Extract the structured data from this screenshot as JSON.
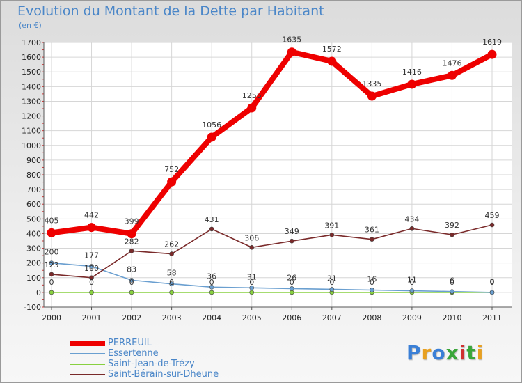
{
  "header": {
    "title": "Evolution du Montant de la Dette par Habitant",
    "unit": "(en €)"
  },
  "brand": {
    "letters": [
      "P",
      "r",
      "o",
      "x",
      "i",
      "t",
      "i"
    ],
    "colors": [
      "#3a7fd6",
      "#e8a020",
      "#3a7fd6",
      "#3aa63a",
      "#d03030",
      "#3aa63a",
      "#e8a020"
    ]
  },
  "chart_data": {
    "type": "line",
    "title": "Evolution du Montant de la Dette par Habitant",
    "ylabel": "(en €)",
    "xlabel": "",
    "x": [
      "2000",
      "2001",
      "2002",
      "2003",
      "2004",
      "2005",
      "2006",
      "2007",
      "2008",
      "2009",
      "2010",
      "2011"
    ],
    "ylim": [
      -100,
      1700
    ],
    "yticks": [
      "-100",
      "0",
      "100",
      "200",
      "300",
      "400",
      "500",
      "600",
      "700",
      "800",
      "900",
      "1000",
      "1100",
      "1200",
      "1300",
      "1400",
      "1500",
      "1600",
      "1700"
    ],
    "legend_position": "bottom-left",
    "series": [
      {
        "name": "PERREUIL",
        "color": "#ee0000",
        "values": [
          405,
          442,
          399,
          752,
          1056,
          1255,
          1635,
          1572,
          1335,
          1416,
          1476,
          1619
        ],
        "labels": [
          "405",
          "442",
          "399",
          "752",
          "1056",
          "1255",
          "1635",
          "1572",
          "1335",
          "1416",
          "1476",
          "1619"
        ]
      },
      {
        "name": "Essertenne",
        "color": "#6a9fd0",
        "values": [
          200,
          177,
          83,
          58,
          36,
          31,
          26,
          21,
          16,
          11,
          6,
          0
        ],
        "labels": [
          "200",
          "177",
          "83",
          "58",
          "36",
          "31",
          "26",
          "21",
          "16",
          "11",
          "6",
          "0"
        ]
      },
      {
        "name": "Saint-Jean-de-Trézy",
        "color": "#88d040",
        "values": [
          0,
          0,
          0,
          0,
          0,
          0,
          0,
          0,
          0,
          0,
          0,
          0
        ],
        "labels": [
          "0",
          "0",
          "0",
          "0",
          "0",
          "0",
          "0",
          "0",
          "0",
          "0",
          "0",
          "0"
        ]
      },
      {
        "name": "Saint-Bérain-sur-Dheune",
        "color": "#7a2a2a",
        "values": [
          123,
          100,
          282,
          262,
          431,
          306,
          349,
          391,
          361,
          434,
          392,
          459
        ],
        "labels": [
          "123",
          "100",
          "282",
          "262",
          "431",
          "306",
          "349",
          "391",
          "361",
          "434",
          "392",
          "459"
        ]
      }
    ]
  }
}
